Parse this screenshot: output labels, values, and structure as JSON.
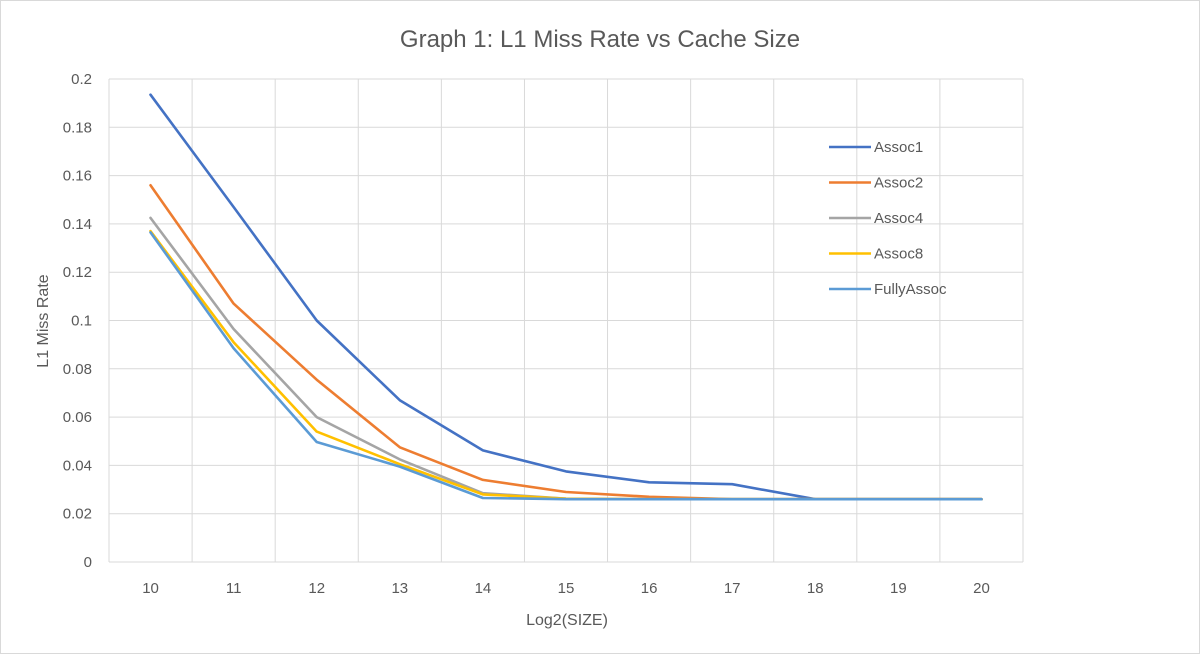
{
  "chart_data": {
    "type": "line",
    "title": "Graph 1: L1 Miss Rate vs Cache Size",
    "xlabel": "Log2(SIZE)",
    "ylabel": "L1 Miss Rate",
    "categories": [
      "10",
      "11",
      "12",
      "13",
      "14",
      "15",
      "16",
      "17",
      "18",
      "19",
      "20"
    ],
    "y_ticks": [
      "0",
      "0.02",
      "0.04",
      "0.06",
      "0.08",
      "0.1",
      "0.12",
      "0.14",
      "0.16",
      "0.18",
      "0.2"
    ],
    "ylim": [
      0,
      0.2
    ],
    "grid": true,
    "legend_position": "right",
    "series": [
      {
        "name": "Assoc1",
        "color": "#4472C4",
        "values": [
          0.1935,
          0.147,
          0.1,
          0.067,
          0.0462,
          0.0375,
          0.033,
          0.0322,
          0.026,
          0.026,
          0.026
        ]
      },
      {
        "name": "Assoc2",
        "color": "#ED7D31",
        "values": [
          0.156,
          0.107,
          0.0755,
          0.0475,
          0.034,
          0.029,
          0.027,
          0.026,
          0.026,
          0.026,
          0.026
        ]
      },
      {
        "name": "Assoc4",
        "color": "#A5A5A5",
        "values": [
          0.1425,
          0.0965,
          0.06,
          0.0425,
          0.0285,
          0.0262,
          0.026,
          0.026,
          0.026,
          0.026,
          0.026
        ]
      },
      {
        "name": "Assoc8",
        "color": "#FFC000",
        "values": [
          0.137,
          0.091,
          0.054,
          0.0405,
          0.028,
          0.0262,
          0.026,
          0.026,
          0.026,
          0.026,
          0.026
        ]
      },
      {
        "name": "FullyAssoc",
        "color": "#5B9BD5",
        "values": [
          0.1365,
          0.0885,
          0.0497,
          0.0395,
          0.0265,
          0.026,
          0.026,
          0.026,
          0.026,
          0.026,
          0.026
        ]
      }
    ]
  }
}
